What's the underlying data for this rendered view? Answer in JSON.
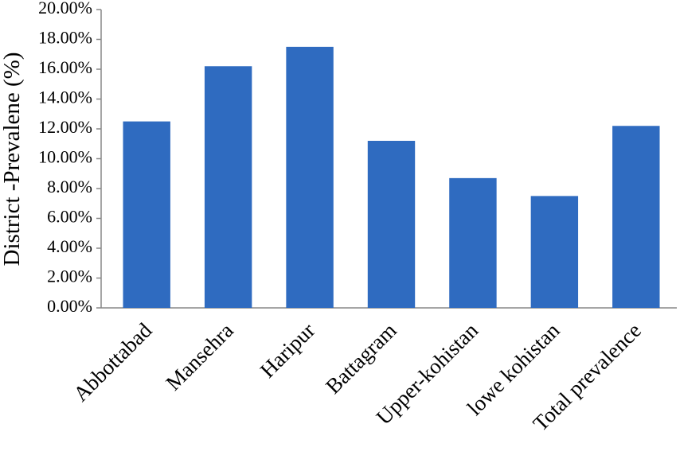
{
  "chart_data": {
    "type": "bar",
    "y_label": "District -Prevalene (%)",
    "categories": [
      "Abbottabad",
      "Mansehra",
      "Haripur",
      "Battagram",
      "Upper-kohistan",
      "lowe kohistan",
      "Total prevalence"
    ],
    "values": [
      12.5,
      16.2,
      17.5,
      11.2,
      8.7,
      7.5,
      12.2
    ],
    "color": "#2f6bc0",
    "ylim": [
      0,
      20
    ],
    "yticks": [
      {
        "value": 0,
        "label": "0.00%"
      },
      {
        "value": 2,
        "label": "2.00%"
      },
      {
        "value": 4,
        "label": "4.00%"
      },
      {
        "value": 6,
        "label": "6.00%"
      },
      {
        "value": 8,
        "label": "8.00%"
      },
      {
        "value": 10,
        "label": "10.00%"
      },
      {
        "value": 12,
        "label": "12.00%"
      },
      {
        "value": 14,
        "label": "14.00%"
      },
      {
        "value": 16,
        "label": "16.00%"
      },
      {
        "value": 18,
        "label": "18.00%"
      },
      {
        "value": 20,
        "label": "20.00%"
      }
    ],
    "grid": false
  }
}
